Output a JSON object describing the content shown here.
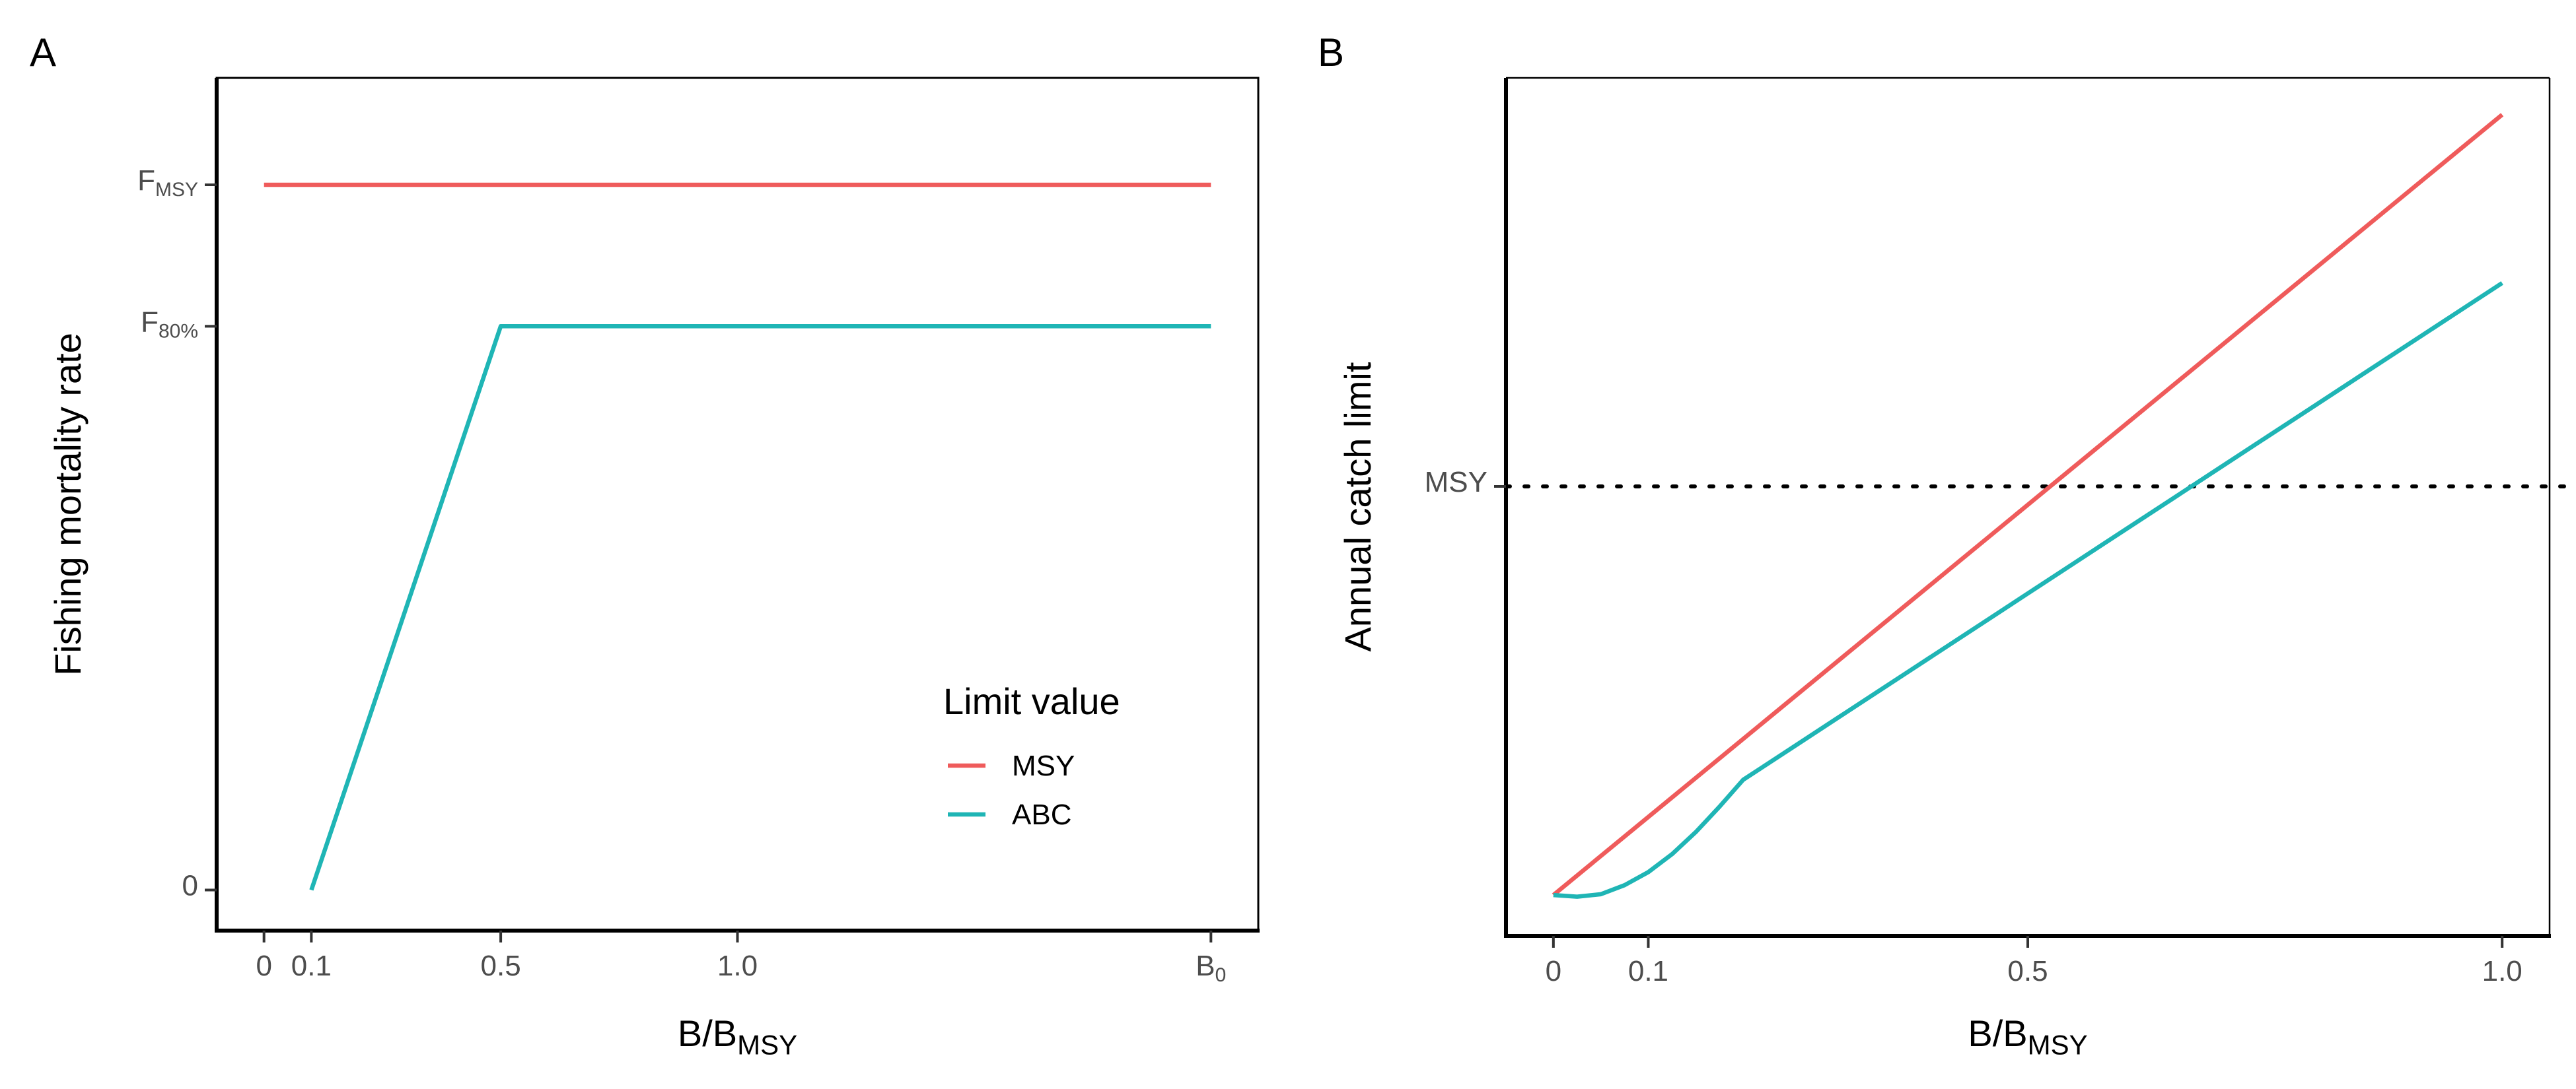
{
  "chart_data": [
    {
      "panel_label": "A",
      "type": "line",
      "xlabel": {
        "base": "B/B",
        "sub": "MSY"
      },
      "ylabel": "Fishing mortality rate",
      "xlim": [
        -0.1,
        2.1
      ],
      "ylim": [
        -0.06,
        1.2
      ],
      "x_ticks": [
        {
          "value": 0,
          "label": "0",
          "sub": ""
        },
        {
          "value": 0.1,
          "label": "0.1",
          "sub": ""
        },
        {
          "value": 0.5,
          "label": "0.5",
          "sub": ""
        },
        {
          "value": 1.0,
          "label": "1.0",
          "sub": ""
        },
        {
          "value": 2.0,
          "label": "B",
          "sub": "0"
        }
      ],
      "y_ticks": [
        {
          "value": 0,
          "label": "0",
          "sub": ""
        },
        {
          "value": 0.833,
          "label": "F",
          "sub": "80%"
        },
        {
          "value": 1.042,
          "label": "F",
          "sub": "MSY"
        }
      ],
      "series": [
        {
          "name": "MSY",
          "color": "#EF5B5B",
          "x": [
            0,
            2.0
          ],
          "y": [
            1.042,
            1.042
          ]
        },
        {
          "name": "ABC",
          "color": "#1FB5B5",
          "x": [
            0.1,
            0.5,
            2.0
          ],
          "y": [
            0,
            0.833,
            0.833
          ]
        }
      ],
      "legend": {
        "title": "Limit value",
        "placement": "bottom-right",
        "entries": [
          {
            "label": "MSY",
            "color": "#EF5B5B"
          },
          {
            "label": "ABC",
            "color": "#1FB5B5"
          }
        ]
      },
      "grid": false
    },
    {
      "panel_label": "B",
      "type": "line",
      "xlabel": {
        "base": "B/B",
        "sub": "MSY"
      },
      "ylabel": "Annual catch limit",
      "xlim": [
        -0.05,
        1.05
      ],
      "ylim": [
        -0.05,
        1.0
      ],
      "x_ticks": [
        {
          "value": 0,
          "label": "0",
          "sub": ""
        },
        {
          "value": 0.1,
          "label": "0.1",
          "sub": ""
        },
        {
          "value": 0.5,
          "label": "0.5",
          "sub": ""
        },
        {
          "value": 1.0,
          "label": "1.0",
          "sub": ""
        }
      ],
      "y_ticks": [
        {
          "value": 0.5,
          "label": "MSY",
          "sub": ""
        }
      ],
      "reference_lines": [
        {
          "orientation": "horizontal",
          "y": 0.5,
          "style": "dotted",
          "color": "#000000"
        }
      ],
      "series": [
        {
          "name": "MSY",
          "color": "#EF5B5B",
          "x": [
            0,
            1.0
          ],
          "y": [
            0,
            0.955
          ]
        },
        {
          "name": "ABC",
          "color": "#1FB5B5",
          "x": [
            0,
            0.025,
            0.05,
            0.075,
            0.1,
            0.125,
            0.15,
            0.175,
            0.2,
            0.25,
            0.3,
            0.35,
            0.4,
            0.45,
            0.5,
            0.55,
            0.6,
            0.65,
            0.7,
            0.75,
            0.8,
            0.85,
            0.9,
            0.95,
            1.0
          ],
          "y": [
            0,
            -0.002,
            0.001,
            0.012,
            0.028,
            0.05,
            0.077,
            0.108,
            0.141,
            0.179,
            0.217,
            0.255,
            0.293,
            0.331,
            0.369,
            0.407,
            0.445,
            0.483,
            0.521,
            0.559,
            0.597,
            0.635,
            0.673,
            0.711,
            0.749
          ]
        }
      ],
      "grid": false
    }
  ]
}
